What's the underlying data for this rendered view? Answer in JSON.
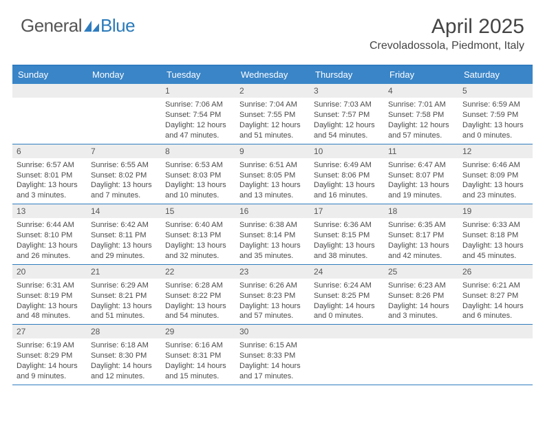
{
  "logo": {
    "text_a": "General",
    "text_b": "Blue"
  },
  "title": "April 2025",
  "location": "Crevoladossola, Piedmont, Italy",
  "colors": {
    "header_bg": "#3a85c8",
    "border": "#2f7cbf",
    "num_bg": "#ededed",
    "text": "#4a4a4a"
  },
  "day_names": [
    "Sunday",
    "Monday",
    "Tuesday",
    "Wednesday",
    "Thursday",
    "Friday",
    "Saturday"
  ],
  "weeks": [
    [
      null,
      null,
      {
        "n": "1",
        "sr": "7:06 AM",
        "ss": "7:54 PM",
        "dl": "12 hours and 47 minutes."
      },
      {
        "n": "2",
        "sr": "7:04 AM",
        "ss": "7:55 PM",
        "dl": "12 hours and 51 minutes."
      },
      {
        "n": "3",
        "sr": "7:03 AM",
        "ss": "7:57 PM",
        "dl": "12 hours and 54 minutes."
      },
      {
        "n": "4",
        "sr": "7:01 AM",
        "ss": "7:58 PM",
        "dl": "12 hours and 57 minutes."
      },
      {
        "n": "5",
        "sr": "6:59 AM",
        "ss": "7:59 PM",
        "dl": "13 hours and 0 minutes."
      }
    ],
    [
      {
        "n": "6",
        "sr": "6:57 AM",
        "ss": "8:01 PM",
        "dl": "13 hours and 3 minutes."
      },
      {
        "n": "7",
        "sr": "6:55 AM",
        "ss": "8:02 PM",
        "dl": "13 hours and 7 minutes."
      },
      {
        "n": "8",
        "sr": "6:53 AM",
        "ss": "8:03 PM",
        "dl": "13 hours and 10 minutes."
      },
      {
        "n": "9",
        "sr": "6:51 AM",
        "ss": "8:05 PM",
        "dl": "13 hours and 13 minutes."
      },
      {
        "n": "10",
        "sr": "6:49 AM",
        "ss": "8:06 PM",
        "dl": "13 hours and 16 minutes."
      },
      {
        "n": "11",
        "sr": "6:47 AM",
        "ss": "8:07 PM",
        "dl": "13 hours and 19 minutes."
      },
      {
        "n": "12",
        "sr": "6:46 AM",
        "ss": "8:09 PM",
        "dl": "13 hours and 23 minutes."
      }
    ],
    [
      {
        "n": "13",
        "sr": "6:44 AM",
        "ss": "8:10 PM",
        "dl": "13 hours and 26 minutes."
      },
      {
        "n": "14",
        "sr": "6:42 AM",
        "ss": "8:11 PM",
        "dl": "13 hours and 29 minutes."
      },
      {
        "n": "15",
        "sr": "6:40 AM",
        "ss": "8:13 PM",
        "dl": "13 hours and 32 minutes."
      },
      {
        "n": "16",
        "sr": "6:38 AM",
        "ss": "8:14 PM",
        "dl": "13 hours and 35 minutes."
      },
      {
        "n": "17",
        "sr": "6:36 AM",
        "ss": "8:15 PM",
        "dl": "13 hours and 38 minutes."
      },
      {
        "n": "18",
        "sr": "6:35 AM",
        "ss": "8:17 PM",
        "dl": "13 hours and 42 minutes."
      },
      {
        "n": "19",
        "sr": "6:33 AM",
        "ss": "8:18 PM",
        "dl": "13 hours and 45 minutes."
      }
    ],
    [
      {
        "n": "20",
        "sr": "6:31 AM",
        "ss": "8:19 PM",
        "dl": "13 hours and 48 minutes."
      },
      {
        "n": "21",
        "sr": "6:29 AM",
        "ss": "8:21 PM",
        "dl": "13 hours and 51 minutes."
      },
      {
        "n": "22",
        "sr": "6:28 AM",
        "ss": "8:22 PM",
        "dl": "13 hours and 54 minutes."
      },
      {
        "n": "23",
        "sr": "6:26 AM",
        "ss": "8:23 PM",
        "dl": "13 hours and 57 minutes."
      },
      {
        "n": "24",
        "sr": "6:24 AM",
        "ss": "8:25 PM",
        "dl": "14 hours and 0 minutes."
      },
      {
        "n": "25",
        "sr": "6:23 AM",
        "ss": "8:26 PM",
        "dl": "14 hours and 3 minutes."
      },
      {
        "n": "26",
        "sr": "6:21 AM",
        "ss": "8:27 PM",
        "dl": "14 hours and 6 minutes."
      }
    ],
    [
      {
        "n": "27",
        "sr": "6:19 AM",
        "ss": "8:29 PM",
        "dl": "14 hours and 9 minutes."
      },
      {
        "n": "28",
        "sr": "6:18 AM",
        "ss": "8:30 PM",
        "dl": "14 hours and 12 minutes."
      },
      {
        "n": "29",
        "sr": "6:16 AM",
        "ss": "8:31 PM",
        "dl": "14 hours and 15 minutes."
      },
      {
        "n": "30",
        "sr": "6:15 AM",
        "ss": "8:33 PM",
        "dl": "14 hours and 17 minutes."
      },
      null,
      null,
      null
    ]
  ],
  "labels": {
    "sunrise": "Sunrise: ",
    "sunset": "Sunset: ",
    "daylight": "Daylight: "
  }
}
